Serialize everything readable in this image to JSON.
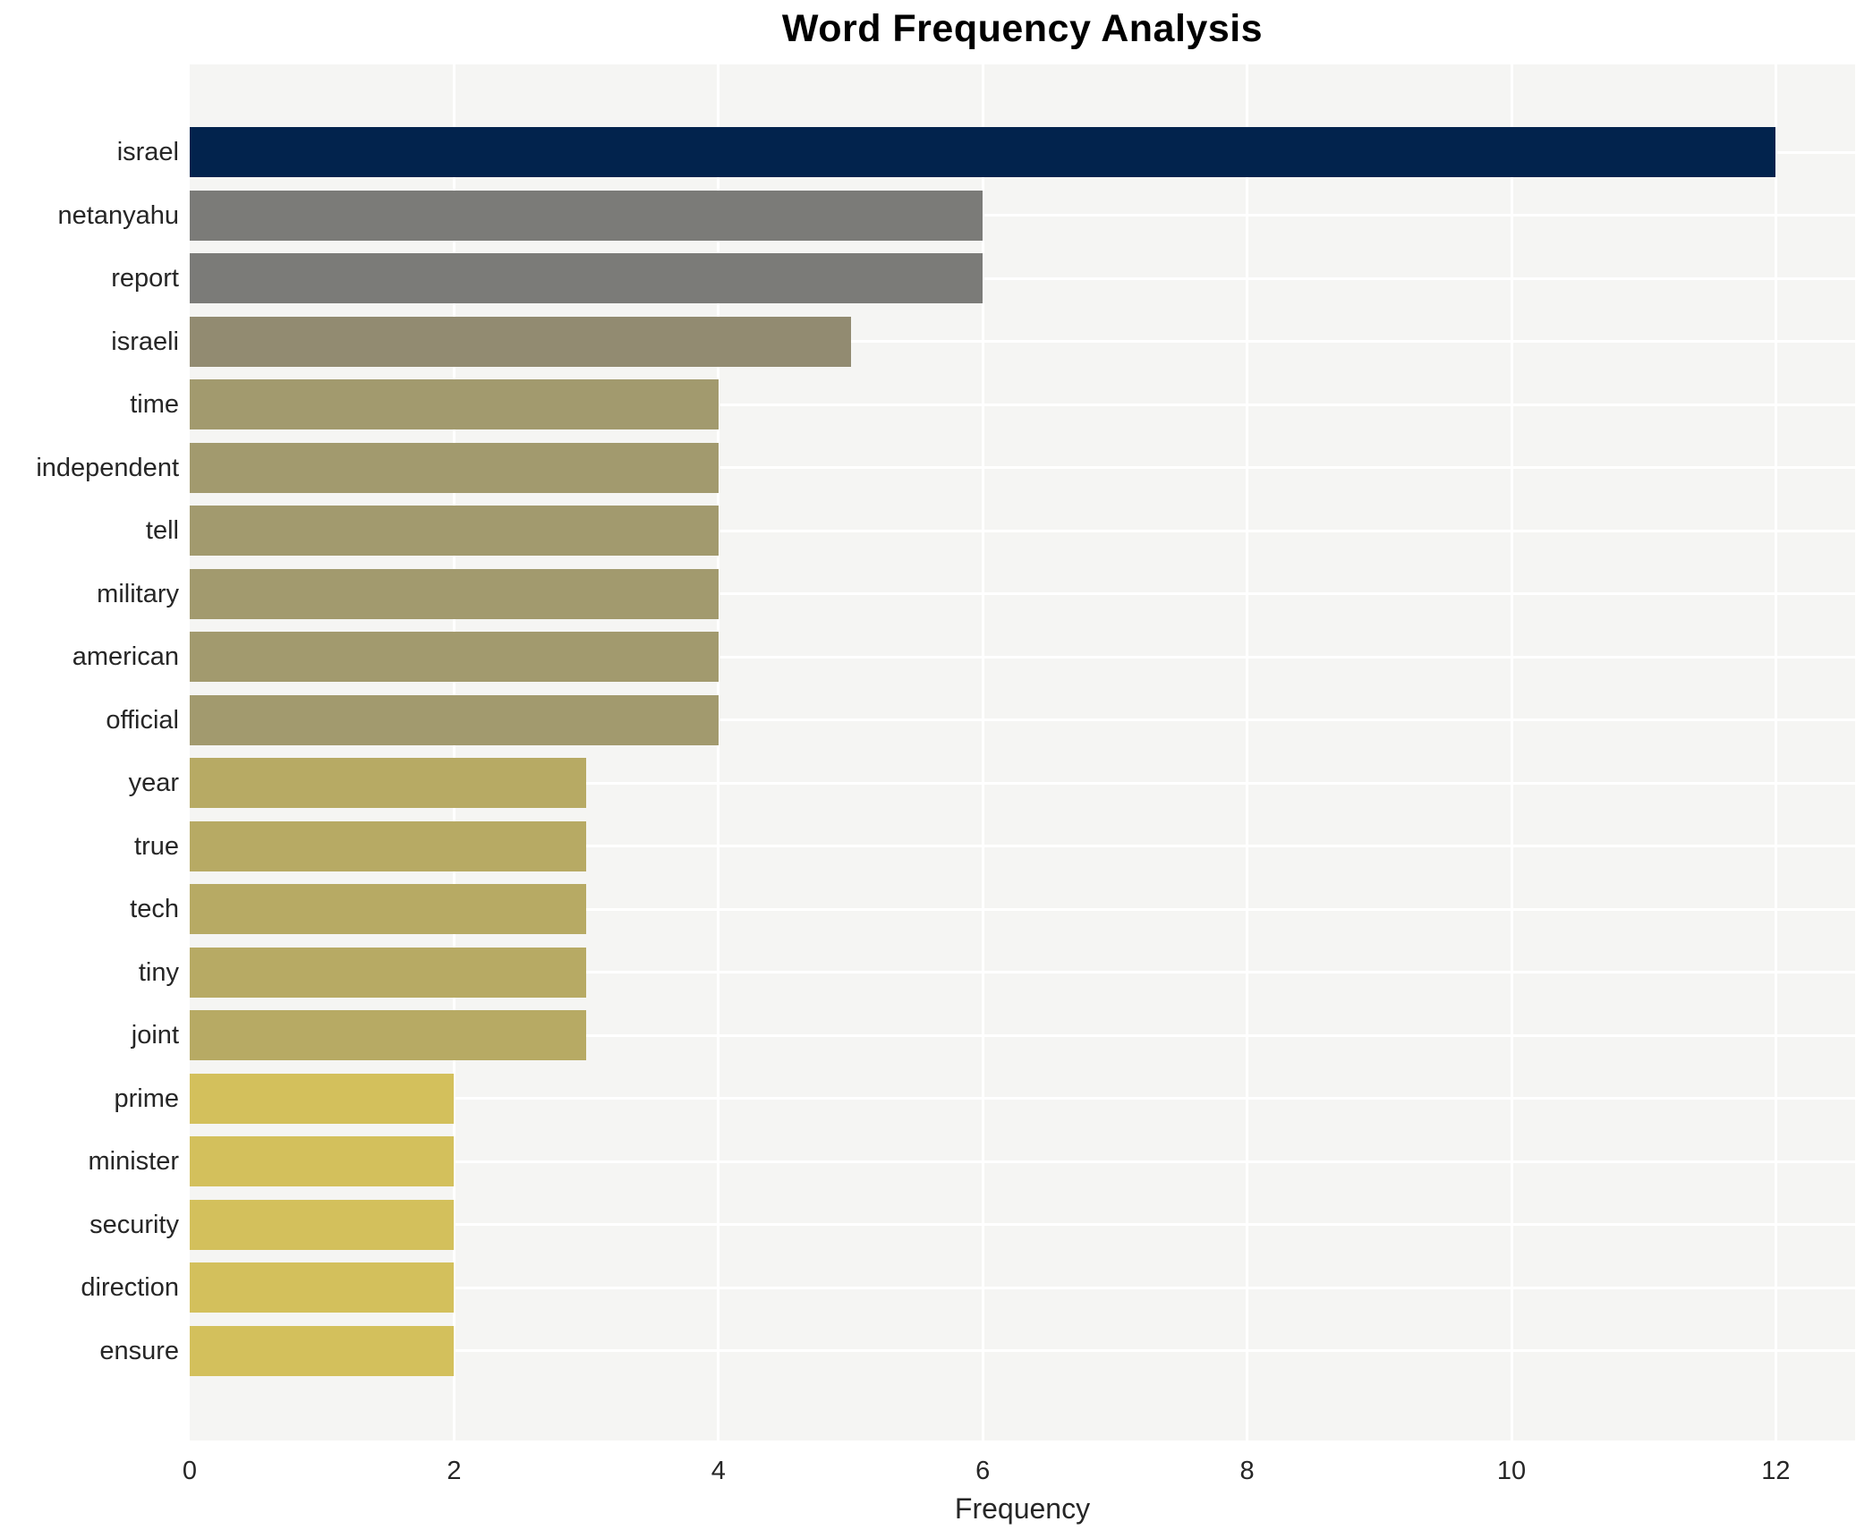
{
  "chart_data": {
    "type": "bar",
    "orientation": "horizontal",
    "title": "Word Frequency Analysis",
    "xlabel": "Frequency",
    "ylabel": "",
    "categories": [
      "israel",
      "netanyahu",
      "report",
      "israeli",
      "time",
      "independent",
      "tell",
      "military",
      "american",
      "official",
      "year",
      "true",
      "tech",
      "tiny",
      "joint",
      "prime",
      "minister",
      "security",
      "direction",
      "ensure"
    ],
    "values": [
      12,
      6,
      6,
      5,
      4,
      4,
      4,
      4,
      4,
      4,
      3,
      3,
      3,
      3,
      3,
      2,
      2,
      2,
      2,
      2
    ],
    "bar_colors": [
      "#02234d",
      "#7b7b78",
      "#7b7b78",
      "#928b71",
      "#a29a6e",
      "#a29a6e",
      "#a29a6e",
      "#a29a6e",
      "#a29a6e",
      "#a29a6e",
      "#b7aa64",
      "#b7aa64",
      "#b7aa64",
      "#b7aa64",
      "#b7aa64",
      "#d3c05c",
      "#d3c05c",
      "#d3c05c",
      "#d3c05c",
      "#d3c05c"
    ],
    "xticks": [
      0,
      2,
      4,
      6,
      8,
      10,
      12
    ],
    "xlim": [
      0,
      12.6
    ],
    "grid": true,
    "legend": "none",
    "colors": {
      "plot_background": "#f5f5f3",
      "gridline": "#ffffff",
      "text": "#262626",
      "title": "#000000"
    }
  }
}
